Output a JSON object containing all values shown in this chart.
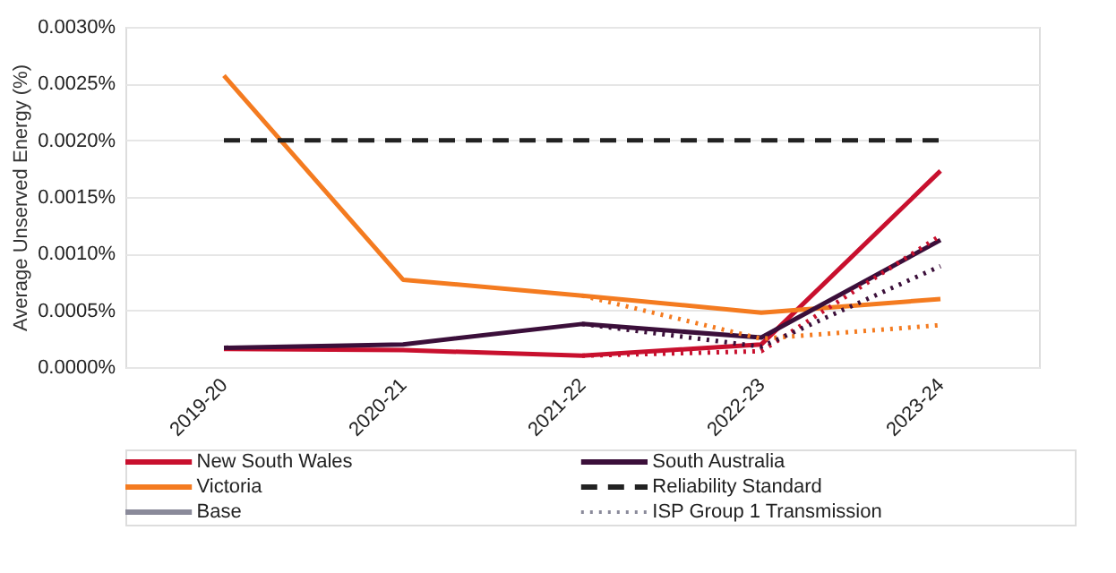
{
  "chart_data": {
    "type": "line",
    "ylabel": "Average Unserved Energy (%)",
    "categories": [
      "2019-20",
      "2020-21",
      "2021-22",
      "2022-23",
      "2023-24"
    ],
    "series": [
      {
        "name": "New South Wales",
        "color": "#c8102e",
        "line_style": "solid",
        "values": [
          0.00016,
          0.00015,
          0.0001,
          0.0002,
          0.00173
        ]
      },
      {
        "name": "Victoria",
        "color": "#f47b20",
        "line_style": "solid",
        "values": [
          0.00257,
          0.00077,
          0.00063,
          0.00048,
          0.0006
        ]
      },
      {
        "name": "South Australia",
        "color": "#3b0f3a",
        "line_style": "solid",
        "values": [
          0.00017,
          0.0002,
          0.00038,
          0.00026,
          0.00112
        ]
      },
      {
        "name": "Reliability Standard",
        "color": "#222222",
        "line_style": "dashed",
        "values": [
          0.002,
          0.002,
          0.002,
          0.002,
          0.002
        ]
      },
      {
        "color": "#c8102e",
        "line_style": "dotted",
        "values": [
          null,
          null,
          0.0001,
          0.00014,
          0.00116
        ]
      },
      {
        "color": "#f47b20",
        "line_style": "dotted",
        "values": [
          null,
          null,
          0.00063,
          0.00025,
          0.00037
        ]
      },
      {
        "color": "#3b0f3a",
        "line_style": "dotted",
        "values": [
          null,
          null,
          0.00038,
          0.00018,
          0.00089
        ]
      }
    ],
    "annotations": [
      "Base",
      "ISP Group 1 Transmission"
    ],
    "ylim": [
      0,
      0.003
    ],
    "yticks": [
      {
        "value": 0,
        "label": "0.0000%"
      },
      {
        "value": 0.0005,
        "label": "0.0005%"
      },
      {
        "value": 0.001,
        "label": "0.0010%"
      },
      {
        "value": 0.0015,
        "label": "0.0015%"
      },
      {
        "value": 0.002,
        "label": "0.0020%"
      },
      {
        "value": 0.0025,
        "label": "0.0025%"
      },
      {
        "value": 0.003,
        "label": "0.0030%"
      }
    ],
    "grid": "y",
    "legend": "bottom"
  }
}
